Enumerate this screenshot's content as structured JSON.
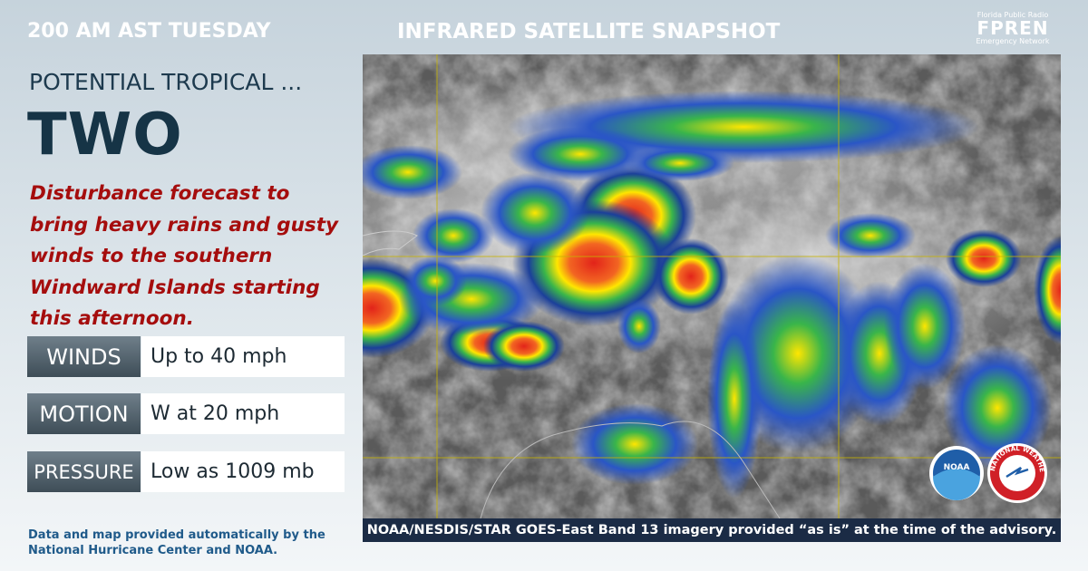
{
  "header": {
    "time": "200 AM AST TUESDAY",
    "image_title": "INFRARED SATELLITE SNAPSHOT"
  },
  "storm": {
    "type": "POTENTIAL TROPICAL ...",
    "name": "TWO"
  },
  "summary": "Disturbance forecast to bring heavy rains and gusty winds to the  southern Windward Islands starting this afternoon.",
  "stats": [
    {
      "label": "WINDS",
      "value": "Up to 40 mph"
    },
    {
      "label": "MOTION",
      "value": "W at 20 mph"
    },
    {
      "label": "PRESSURE",
      "value": "Low as 1009 mb"
    }
  ],
  "footer": "Data and map provided automatically by the National Hurricane Center and NOAA.",
  "image_caption": "NOAA/NESDIS/STAR GOES-East Band 13 imagery provided “as is” at the time of the advisory.",
  "logos": {
    "fpren": [
      "Florida Public Radio",
      "FPREN",
      "Emergency Network"
    ],
    "noaa": "NOAA",
    "nws": "NATIONAL WEATHER SERVICE"
  }
}
